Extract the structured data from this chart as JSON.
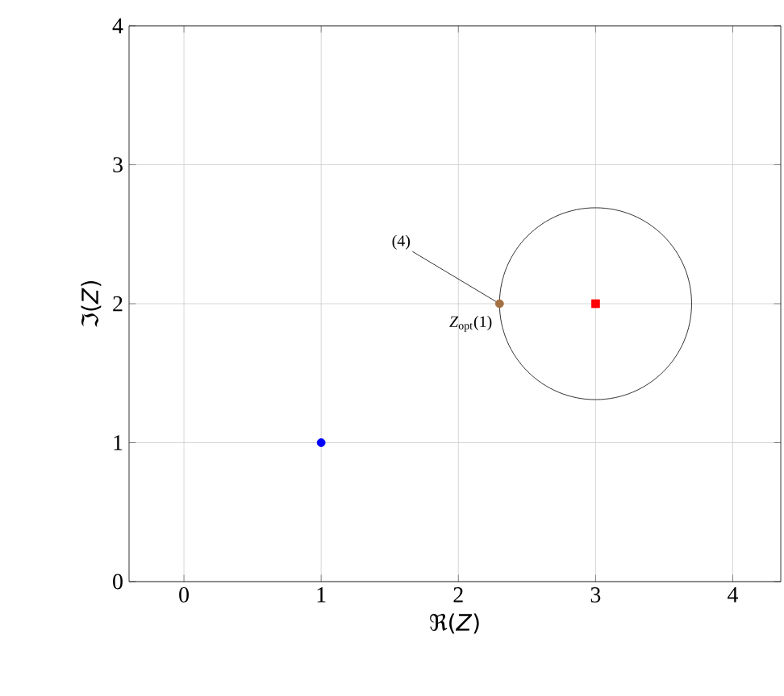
{
  "chart_data": {
    "type": "scatter",
    "xlabel": "ℜ(*Z*)",
    "ylabel": "ℑ(*Z*)",
    "xlim": [
      -0.4,
      4.35
    ],
    "ylim": [
      0,
      4
    ],
    "xticks": [
      0,
      1,
      2,
      3,
      4
    ],
    "yticks": [
      0,
      1,
      2,
      3,
      4
    ],
    "grid": true,
    "series": [
      {
        "color": "#0000ff",
        "marker": "circle",
        "x": [
          1
        ],
        "values": [
          1
        ]
      },
      {
        "color": "#ff0000",
        "marker": "square",
        "x": [
          3
        ],
        "values": [
          2
        ]
      },
      {
        "color": "#a57142",
        "marker": "circle",
        "x": [
          2.3
        ],
        "values": [
          2
        ]
      }
    ],
    "annotations": [
      {
        "text": "(4)",
        "x": 2.3,
        "y": 2
      },
      {
        "text": "*Z*$_{opt}$(1)",
        "x": 2.3,
        "y": 2
      }
    ]
  }
}
